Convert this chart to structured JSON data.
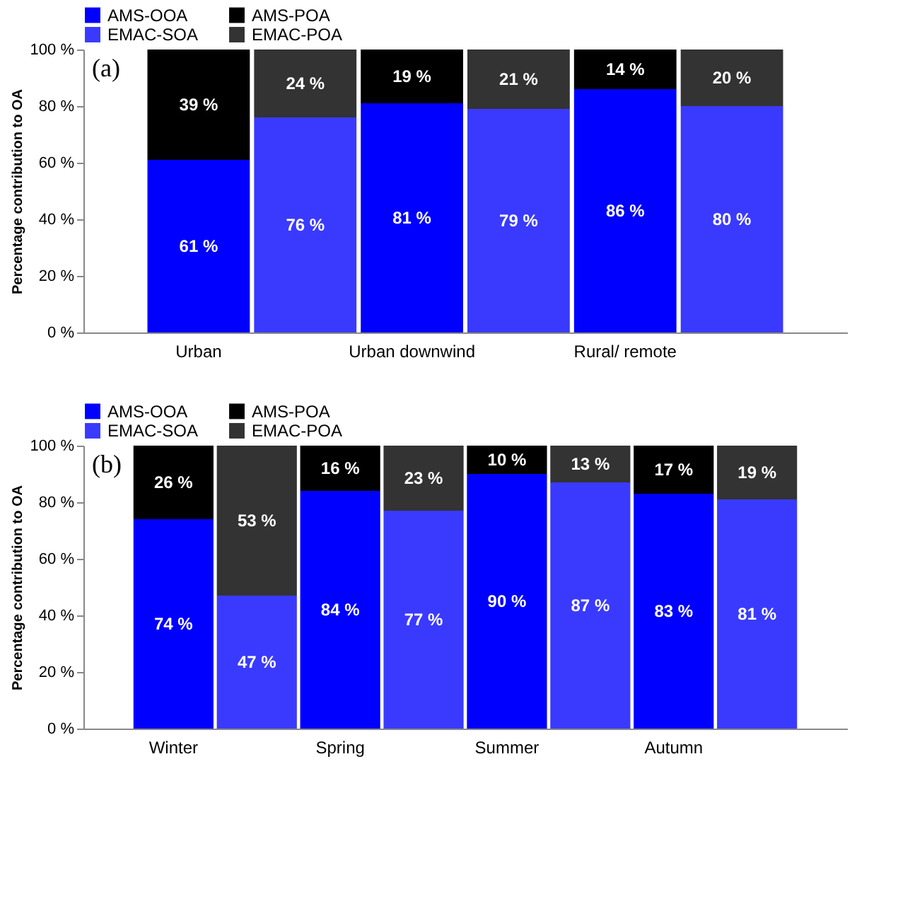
{
  "chart_data": [
    {
      "type": "bar",
      "stacked": true,
      "annotations": [
        "(a)"
      ],
      "ylabel": "Percentage contribution to OA",
      "categories": [
        "Urban",
        null,
        "Urban downwind",
        null,
        "Rural/ remote",
        null
      ],
      "ylim": [
        0,
        100
      ],
      "yticks": [
        {
          "value": 0,
          "label": "0 %"
        },
        {
          "value": 20,
          "label": "20 %"
        },
        {
          "value": 40,
          "label": "40 %"
        },
        {
          "value": 60,
          "label": "60 %"
        },
        {
          "value": 80,
          "label": "80 %"
        },
        {
          "value": 100,
          "label": "100 %"
        }
      ],
      "legend": "top",
      "grid": false,
      "series": [
        {
          "name": "AMS-OOA",
          "color": "#0000ff",
          "values": [
            61,
            null,
            81,
            null,
            86,
            null
          ],
          "value_labels": [
            "61 %",
            null,
            "81 %",
            null,
            "86 %",
            null
          ]
        },
        {
          "name": "AMS-POA",
          "color": "#000000",
          "values": [
            39,
            null,
            19,
            null,
            14,
            null
          ],
          "value_labels": [
            "39 %",
            null,
            "19 %",
            null,
            "14 %",
            null
          ]
        },
        {
          "name": "EMAC-SOA",
          "color": "#3a3aff",
          "values": [
            null,
            76,
            null,
            79,
            null,
            80
          ],
          "value_labels": [
            null,
            "76 %",
            null,
            "79 %",
            null,
            "80 %"
          ]
        },
        {
          "name": "EMAC-POA",
          "color": "#333333",
          "values": [
            null,
            24,
            null,
            21,
            null,
            20
          ],
          "value_labels": [
            null,
            "24 %",
            null,
            "21 %",
            null,
            "20 %"
          ]
        }
      ]
    },
    {
      "type": "bar",
      "stacked": true,
      "annotations": [
        "(b)"
      ],
      "ylabel": "Percentage contribution to OA",
      "categories": [
        "Winter",
        null,
        "Spring",
        null,
        "Summer",
        null,
        "Autumn",
        null
      ],
      "ylim": [
        0,
        100
      ],
      "yticks": [
        {
          "value": 0,
          "label": "0 %"
        },
        {
          "value": 20,
          "label": "20 %"
        },
        {
          "value": 40,
          "label": "40 %"
        },
        {
          "value": 60,
          "label": "60 %"
        },
        {
          "value": 80,
          "label": "80 %"
        },
        {
          "value": 100,
          "label": "100 %"
        }
      ],
      "legend": "top",
      "grid": false,
      "series": [
        {
          "name": "AMS-OOA",
          "color": "#0000ff",
          "values": [
            74,
            null,
            84,
            null,
            90,
            null,
            83,
            null
          ],
          "value_labels": [
            "74 %",
            null,
            "84 %",
            null,
            "90 %",
            null,
            "83 %",
            null
          ]
        },
        {
          "name": "AMS-POA",
          "color": "#000000",
          "values": [
            26,
            null,
            16,
            null,
            10,
            null,
            17,
            null
          ],
          "value_labels": [
            "26 %",
            null,
            "16 %",
            null,
            "10 %",
            null,
            "17 %",
            null
          ]
        },
        {
          "name": "EMAC-SOA",
          "color": "#3a3aff",
          "values": [
            null,
            47,
            null,
            77,
            null,
            87,
            null,
            81
          ],
          "value_labels": [
            null,
            "47 %",
            null,
            "77 %",
            null,
            "87 %",
            null,
            "81 %"
          ]
        },
        {
          "name": "EMAC-POA",
          "color": "#333333",
          "values": [
            null,
            53,
            null,
            23,
            null,
            13,
            null,
            19
          ],
          "value_labels": [
            null,
            "53 %",
            null,
            "23 %",
            null,
            "13 %",
            null,
            "19 %"
          ]
        }
      ]
    }
  ]
}
